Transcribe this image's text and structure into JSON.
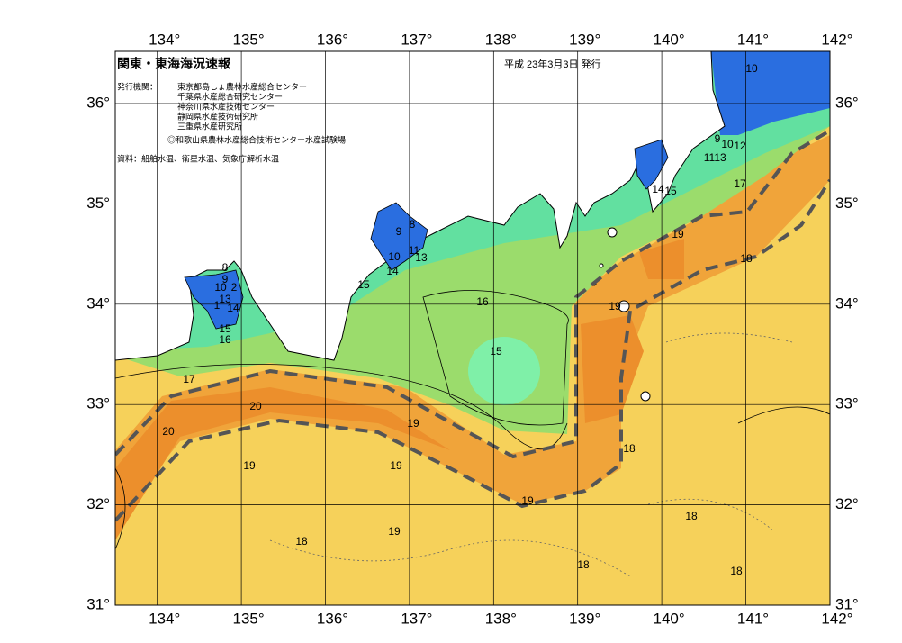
{
  "header": {
    "title": "関東・東海海況速報",
    "date": "平成 23年3月3日 発行",
    "issuer_label": "発行機関：",
    "issuers": [
      "東京都島しょ農林水産総合センター",
      "千葉県水産総合研究センター",
      "神奈川県水産技術センター",
      "静岡県水産技術研究所",
      "三重県水産研究所",
      "◎和歌山県農林水産総合技術センター水産試験場"
    ],
    "source": "資料：船舶水温、衛星水温、気象庁解析水温"
  },
  "axes": {
    "longitude_labels": [
      "134°",
      "135°",
      "136°",
      "137°",
      "138°",
      "139°",
      "140°",
      "141°",
      "142°"
    ],
    "latitude_labels": [
      "36°",
      "35°",
      "34°",
      "33°",
      "32°",
      "31°"
    ]
  },
  "contour_labels": [
    "10",
    "9",
    "10",
    "12",
    "11",
    "13",
    "17",
    "14",
    "15",
    "19",
    "18",
    "19",
    "16",
    "15",
    "8",
    "9",
    "11",
    "10",
    "13",
    "14",
    "15",
    "8",
    "9",
    "10",
    "2",
    "13",
    "1",
    "14",
    "15",
    "16",
    "17",
    "20",
    "20",
    "19",
    "19",
    "19",
    "18",
    "19",
    "18",
    "18",
    "19",
    "18",
    "18"
  ]
}
